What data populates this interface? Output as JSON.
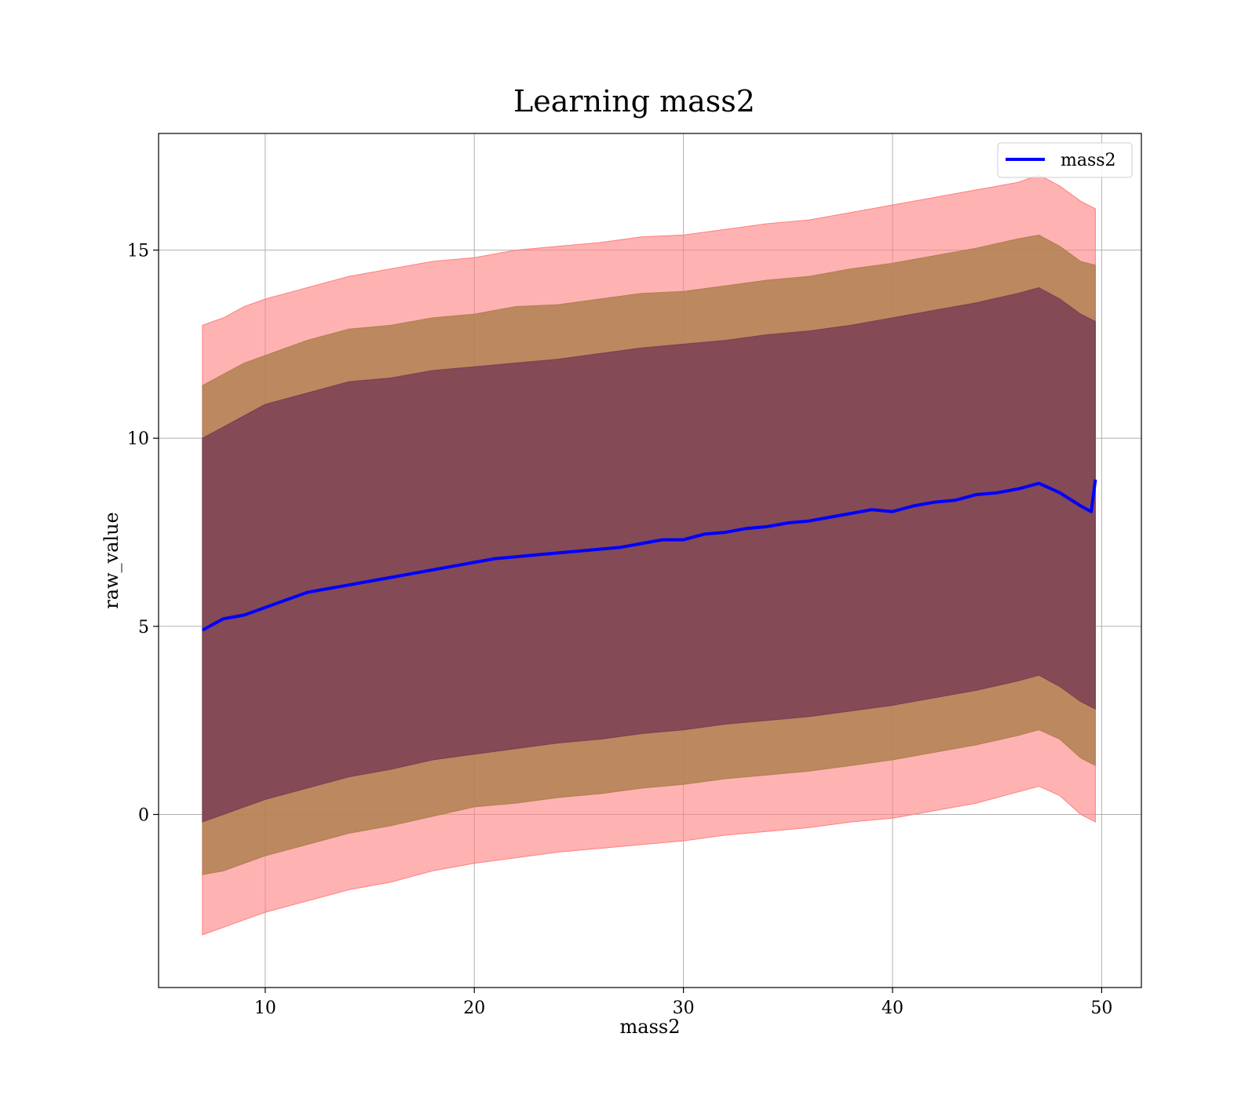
{
  "chart_data": {
    "type": "line",
    "title": "Learning mass2",
    "xlabel": "mass2",
    "ylabel": "raw_value",
    "xlim": [
      4.9,
      51.9
    ],
    "ylim": [
      -4.6,
      18.1
    ],
    "x_ticks": [
      10,
      20,
      30,
      40,
      50
    ],
    "y_ticks": [
      0,
      5,
      10,
      15
    ],
    "grid": true,
    "legend": "top-right",
    "series": [
      {
        "name": "mass2",
        "color": "#0000ff",
        "x": [
          7.0,
          8,
          9,
          10,
          11,
          12,
          13,
          14,
          15,
          16,
          17,
          18,
          19,
          20,
          21,
          22,
          23,
          24,
          25,
          26,
          27,
          28,
          29,
          30,
          31,
          32,
          33,
          34,
          35,
          36,
          37,
          38,
          39,
          40,
          41,
          42,
          43,
          44,
          45,
          46,
          47,
          48,
          49,
          49.5,
          49.7
        ],
        "y": [
          4.9,
          5.2,
          5.3,
          5.5,
          5.7,
          5.9,
          6.0,
          6.1,
          6.2,
          6.3,
          6.4,
          6.5,
          6.6,
          6.7,
          6.8,
          6.85,
          6.9,
          6.95,
          7.0,
          7.05,
          7.1,
          7.2,
          7.3,
          7.3,
          7.45,
          7.5,
          7.6,
          7.65,
          7.75,
          7.8,
          7.9,
          8.0,
          8.1,
          8.05,
          8.2,
          8.3,
          8.35,
          8.5,
          8.55,
          8.65,
          8.8,
          8.55,
          8.2,
          8.05,
          8.9
        ]
      }
    ],
    "bands": [
      {
        "name": "band_3sigma",
        "color": "#ff7f7f",
        "x": [
          7.0,
          8,
          9,
          10,
          12,
          14,
          16,
          18,
          20,
          22,
          24,
          26,
          28,
          30,
          32,
          34,
          36,
          38,
          40,
          42,
          44,
          46,
          47,
          48,
          49,
          49.7
        ],
        "lower": [
          -3.2,
          -3.0,
          -2.8,
          -2.6,
          -2.3,
          -2.0,
          -1.8,
          -1.5,
          -1.3,
          -1.15,
          -1.0,
          -0.9,
          -0.8,
          -0.7,
          -0.55,
          -0.45,
          -0.35,
          -0.2,
          -0.1,
          0.1,
          0.3,
          0.6,
          0.75,
          0.5,
          0.0,
          -0.2
        ],
        "upper": [
          13.0,
          13.2,
          13.5,
          13.7,
          14.0,
          14.3,
          14.5,
          14.7,
          14.8,
          15.0,
          15.1,
          15.2,
          15.35,
          15.4,
          15.55,
          15.7,
          15.8,
          16.0,
          16.2,
          16.4,
          16.6,
          16.8,
          17.0,
          16.7,
          16.3,
          16.1
        ]
      },
      {
        "name": "band_2sigma",
        "color": "#b08050",
        "x": [
          7.0,
          8,
          9,
          10,
          12,
          14,
          16,
          18,
          20,
          22,
          24,
          26,
          28,
          30,
          32,
          34,
          36,
          38,
          40,
          42,
          44,
          46,
          47,
          48,
          49,
          49.7
        ],
        "lower": [
          -1.6,
          -1.5,
          -1.3,
          -1.1,
          -0.8,
          -0.5,
          -0.3,
          -0.05,
          0.2,
          0.3,
          0.45,
          0.55,
          0.7,
          0.8,
          0.95,
          1.05,
          1.15,
          1.3,
          1.45,
          1.65,
          1.85,
          2.1,
          2.25,
          2.0,
          1.5,
          1.3
        ],
        "upper": [
          11.4,
          11.7,
          12.0,
          12.2,
          12.6,
          12.9,
          13.0,
          13.2,
          13.3,
          13.5,
          13.55,
          13.7,
          13.85,
          13.9,
          14.05,
          14.2,
          14.3,
          14.5,
          14.65,
          14.85,
          15.05,
          15.3,
          15.4,
          15.1,
          14.7,
          14.6
        ]
      },
      {
        "name": "band_1sigma",
        "color": "#7a3f55",
        "x": [
          7.0,
          8,
          9,
          10,
          12,
          14,
          16,
          18,
          20,
          22,
          24,
          26,
          28,
          30,
          32,
          34,
          36,
          38,
          40,
          42,
          44,
          46,
          47,
          48,
          49,
          49.7
        ],
        "lower": [
          -0.2,
          0.0,
          0.2,
          0.4,
          0.7,
          1.0,
          1.2,
          1.45,
          1.6,
          1.75,
          1.9,
          2.0,
          2.15,
          2.25,
          2.4,
          2.5,
          2.6,
          2.75,
          2.9,
          3.1,
          3.3,
          3.55,
          3.7,
          3.4,
          3.0,
          2.8
        ],
        "upper": [
          10.0,
          10.3,
          10.6,
          10.9,
          11.2,
          11.5,
          11.6,
          11.8,
          11.9,
          12.0,
          12.1,
          12.25,
          12.4,
          12.5,
          12.6,
          12.75,
          12.85,
          13.0,
          13.2,
          13.4,
          13.6,
          13.85,
          14.0,
          13.7,
          13.3,
          13.1
        ]
      }
    ]
  }
}
